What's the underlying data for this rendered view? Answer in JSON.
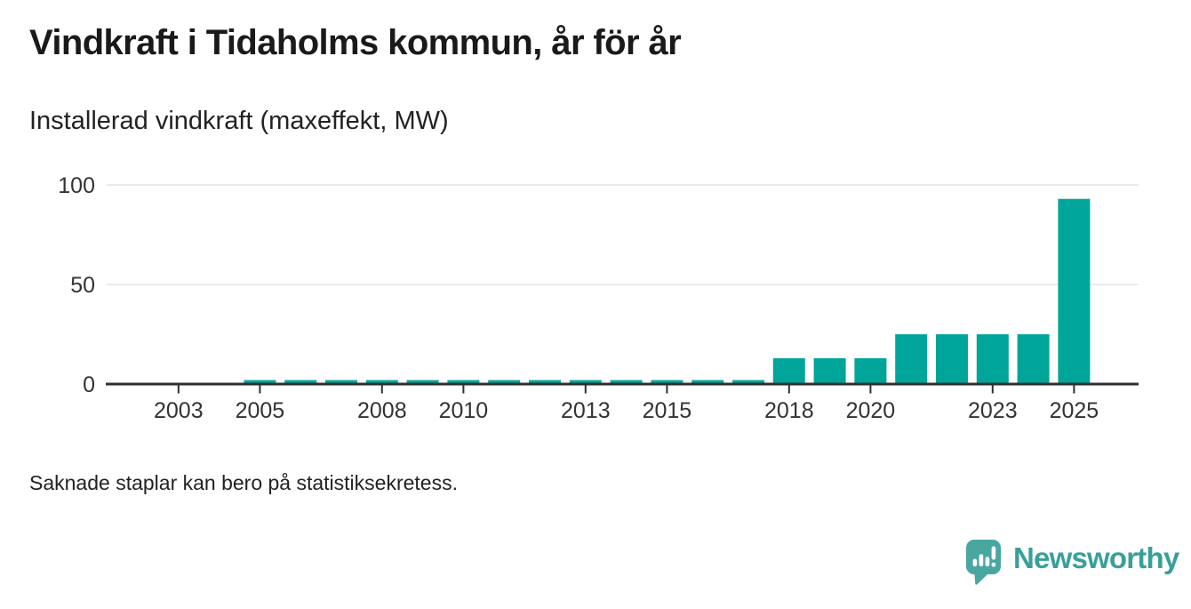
{
  "chart_data": {
    "type": "bar",
    "title": "Vindkraft i Tidaholms kommun, år för år",
    "subtitle": "Installerad vindkraft (maxeffekt, MW)",
    "note": "Saknade staplar kan bero på statistiksekretess.",
    "x": [
      2002,
      2003,
      2004,
      2005,
      2006,
      2007,
      2008,
      2009,
      2010,
      2011,
      2012,
      2013,
      2014,
      2015,
      2016,
      2017,
      2018,
      2019,
      2020,
      2021,
      2022,
      2023,
      2024,
      2025,
      2026
    ],
    "values": [
      null,
      null,
      null,
      2,
      2,
      2,
      2,
      2,
      2,
      2,
      2,
      2,
      2,
      2,
      2,
      2,
      13,
      13,
      13,
      25,
      25,
      25,
      25,
      93,
      null
    ],
    "x_tick_labels": [
      "2003",
      "2005",
      "2008",
      "2010",
      "2013",
      "2015",
      "2018",
      "2020",
      "2023",
      "2025"
    ],
    "y_ticks": [
      0,
      50,
      100
    ],
    "y_tick_labels": [
      "0",
      "50",
      "100"
    ],
    "ylim": [
      0,
      100
    ],
    "grid": "horizontal",
    "legend": "none",
    "colors": {
      "bar": "#00a59a",
      "axis": "#2f2f2f",
      "gridline": "#e4e4e4",
      "tick_text": "#333333"
    }
  },
  "brand": {
    "name": "Newsworthy",
    "icon": "newsworthy-speech-bubble-bar-chart-icon",
    "icon_color": "#4aa6a1",
    "text_color": "#399f9a"
  }
}
